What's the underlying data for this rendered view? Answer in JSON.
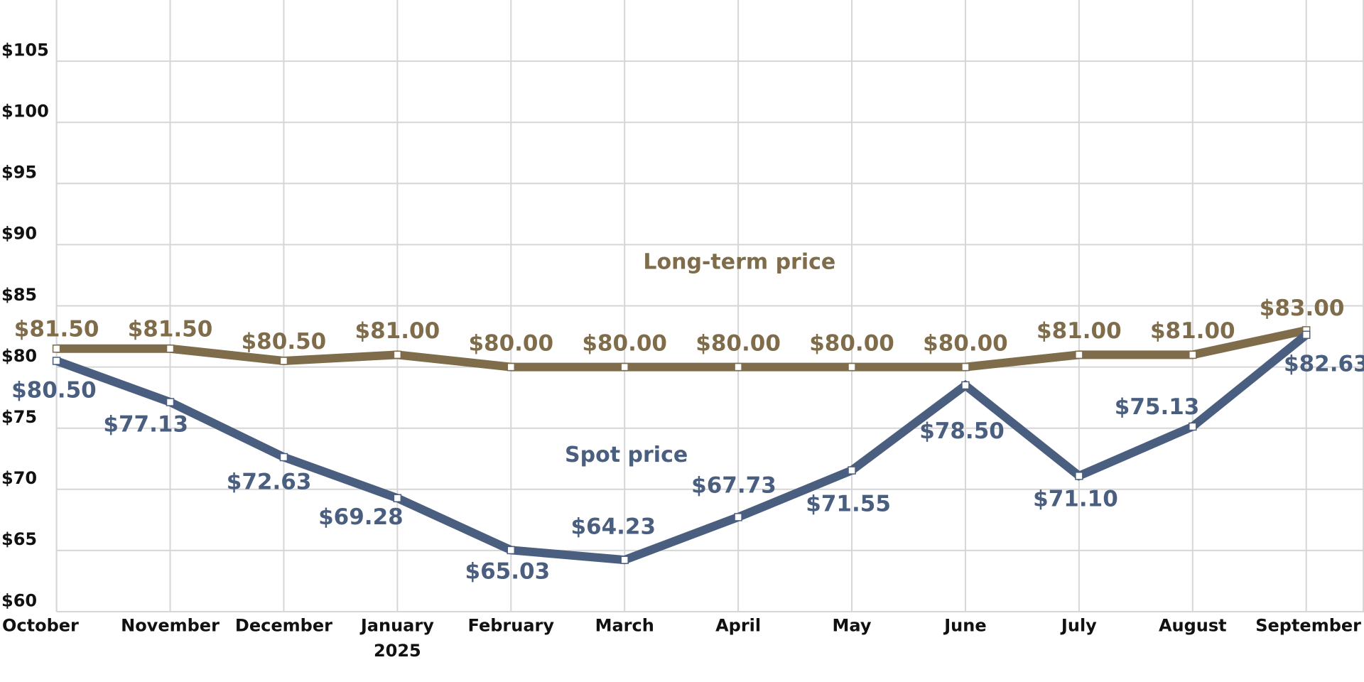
{
  "chart_data": {
    "type": "line",
    "categories": [
      "October",
      "November",
      "December",
      "January",
      "February",
      "March",
      "April",
      "May",
      "June",
      "July",
      "August",
      "September"
    ],
    "year_label": "2025",
    "ylim": [
      60,
      110
    ],
    "yticks": [
      {
        "value": 60,
        "label": "$60"
      },
      {
        "value": 65,
        "label": "$65"
      },
      {
        "value": 70,
        "label": "$70"
      },
      {
        "value": 75,
        "label": "$75"
      },
      {
        "value": 80,
        "label": "$80"
      },
      {
        "value": 85,
        "label": "$85"
      },
      {
        "value": 90,
        "label": "$90"
      },
      {
        "value": 95,
        "label": "$95"
      },
      {
        "value": 100,
        "label": "$100"
      },
      {
        "value": 105,
        "label": "$105"
      }
    ],
    "grid": true,
    "series": [
      {
        "name": "Long-term price",
        "color": "#7f6c4b",
        "values": [
          81.5,
          81.5,
          80.5,
          81.0,
          80.0,
          80.0,
          80.0,
          80.0,
          80.0,
          81.0,
          81.0,
          83.0
        ],
        "value_labels": [
          "$81.50",
          "$81.50",
          "$80.50",
          "$81.00",
          "$80.00",
          "$80.00",
          "$80.00",
          "$80.00",
          "$80.00",
          "$81.00",
          "$81.00",
          "$83.00"
        ]
      },
      {
        "name": "Spot price",
        "color": "#4a5f80",
        "values": [
          80.5,
          77.13,
          72.63,
          69.28,
          65.03,
          64.23,
          67.73,
          71.55,
          78.5,
          71.1,
          75.13,
          82.63
        ],
        "value_labels": [
          "$80.50",
          "$77.13",
          "$72.63",
          "$69.28",
          "$65.03",
          "$64.23",
          "$67.73",
          "$71.55",
          "$78.50",
          "$71.10",
          "$75.13",
          "$82.63"
        ]
      }
    ]
  }
}
